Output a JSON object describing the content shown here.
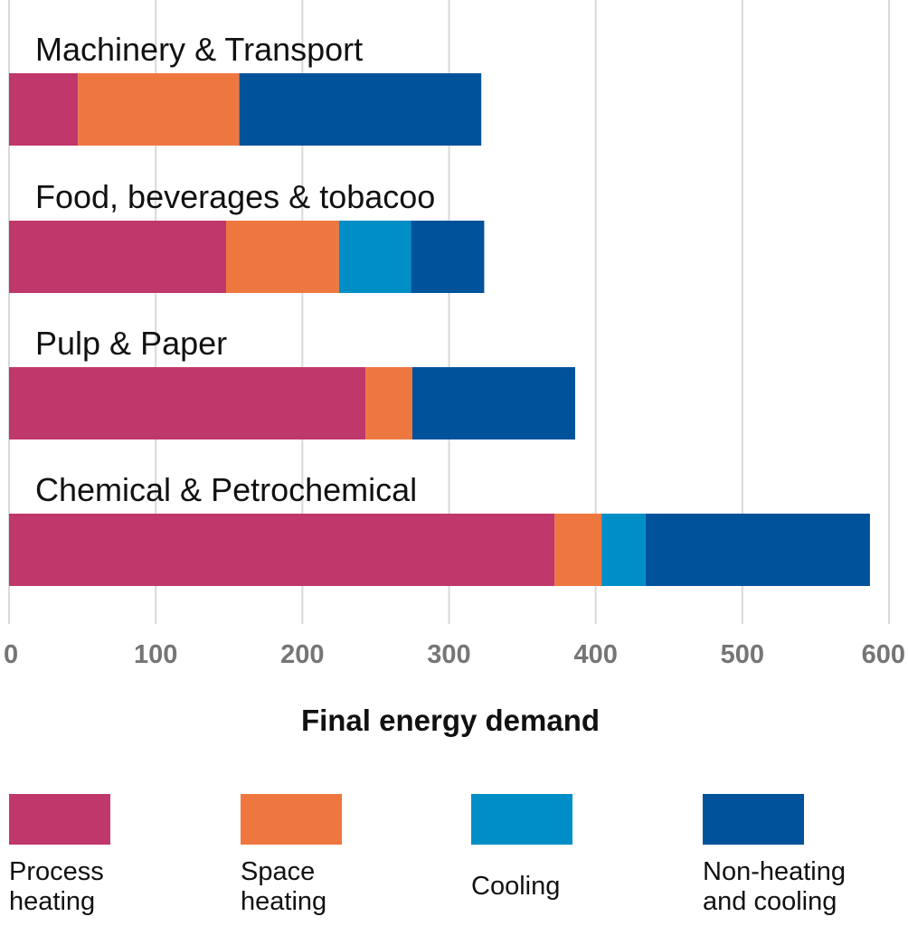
{
  "chart_data": {
    "type": "bar",
    "orientation": "horizontal",
    "stacked": true,
    "categories": [
      "Machinery & Transport",
      "Food, beverages & tobacoo",
      "Pulp & Paper",
      "Chemical & Petrochemical"
    ],
    "series": [
      {
        "name": "Process heating",
        "color": "#c0376b",
        "values": [
          47,
          148,
          243,
          372
        ]
      },
      {
        "name": "Space heating",
        "color": "#ee7740",
        "values": [
          110,
          77,
          32,
          32
        ]
      },
      {
        "name": "Cooling",
        "color": "#008ec6",
        "values": [
          0,
          49,
          0,
          30
        ]
      },
      {
        "name": "Non-heating and cooling",
        "color": "#00529b",
        "values": [
          165,
          50,
          111,
          153
        ]
      }
    ],
    "xlabel": "Final energy demand",
    "ylabel": "",
    "xlim": [
      0,
      600
    ],
    "xticks": [
      0,
      100,
      200,
      300,
      400,
      500,
      600
    ],
    "grid": "vertical",
    "legend_position": "bottom"
  },
  "legend": [
    {
      "line1": "Process",
      "line2": "heating",
      "color": "#c0376b"
    },
    {
      "line1": "Space",
      "line2": "heating",
      "color": "#ee7740"
    },
    {
      "line1": "Cooling",
      "line2": "",
      "color": "#008ec6"
    },
    {
      "line1": "Non-heating",
      "line2": "and cooling",
      "color": "#00529b"
    }
  ]
}
